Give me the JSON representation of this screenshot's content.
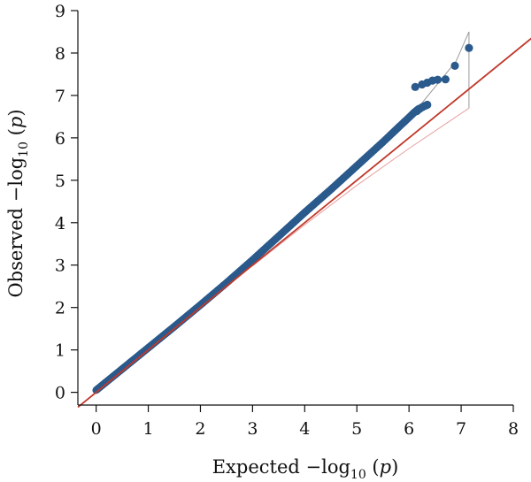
{
  "chart_data": {
    "type": "scatter",
    "title": "",
    "xlabel": {
      "pre": "Expected −log",
      "sub": "10",
      "open": " (",
      "var": "p",
      "close": ")"
    },
    "ylabel": {
      "pre": "Observed −log",
      "sub": "10",
      "open": " (",
      "var": "p",
      "close": ")"
    },
    "xlim": [
      -0.35,
      8.0
    ],
    "ylim": [
      -0.3,
      9.0
    ],
    "x_ticks": [
      0,
      1,
      2,
      3,
      4,
      5,
      6,
      7,
      8
    ],
    "y_ticks": [
      0,
      1,
      2,
      3,
      4,
      5,
      6,
      7,
      8,
      9
    ],
    "x_tick_labels": [
      "0",
      "1",
      "2",
      "3",
      "4",
      "5",
      "6",
      "7",
      "8"
    ],
    "y_tick_labels": [
      "0",
      "1",
      "2",
      "3",
      "4",
      "5",
      "6",
      "7",
      "8",
      "9"
    ],
    "grid": false,
    "legend": "none",
    "reference_line": {
      "slope": 1,
      "intercept": 0,
      "color": "#c0392b"
    },
    "confidence_band": {
      "color_upper": "#9a9a9a",
      "color_lower": "#e6a0a0",
      "upper": [
        [
          3.0,
          3.05
        ],
        [
          4.0,
          4.15
        ],
        [
          5.0,
          5.25
        ],
        [
          6.0,
          6.45
        ],
        [
          6.9,
          7.8
        ],
        [
          7.15,
          8.5
        ]
      ],
      "lower": [
        [
          3.0,
          2.98
        ],
        [
          4.0,
          3.95
        ],
        [
          5.0,
          4.88
        ],
        [
          6.0,
          5.75
        ],
        [
          7.15,
          6.7
        ]
      ]
    },
    "series": [
      {
        "color": "#2b5a8c",
        "line_points": [
          [
            0.0,
            0.05
          ],
          [
            0.5,
            0.55
          ],
          [
            1.0,
            1.05
          ],
          [
            1.5,
            1.55
          ],
          [
            2.0,
            2.06
          ],
          [
            2.5,
            2.58
          ],
          [
            3.0,
            3.12
          ],
          [
            3.5,
            3.68
          ],
          [
            4.0,
            4.24
          ],
          [
            4.5,
            4.78
          ],
          [
            5.0,
            5.34
          ],
          [
            5.5,
            5.9
          ],
          [
            5.8,
            6.25
          ],
          [
            6.0,
            6.48
          ],
          [
            6.1,
            6.6
          ],
          [
            6.2,
            6.7
          ]
        ],
        "outliers": [
          [
            6.15,
            6.63
          ],
          [
            6.2,
            6.68
          ],
          [
            6.25,
            6.72
          ],
          [
            6.3,
            6.75
          ],
          [
            6.35,
            6.78
          ],
          [
            6.12,
            7.2
          ],
          [
            6.25,
            7.26
          ],
          [
            6.35,
            7.3
          ],
          [
            6.45,
            7.35
          ],
          [
            6.55,
            7.37
          ],
          [
            6.7,
            7.38
          ],
          [
            6.88,
            7.7
          ],
          [
            7.15,
            8.12
          ]
        ]
      }
    ]
  }
}
